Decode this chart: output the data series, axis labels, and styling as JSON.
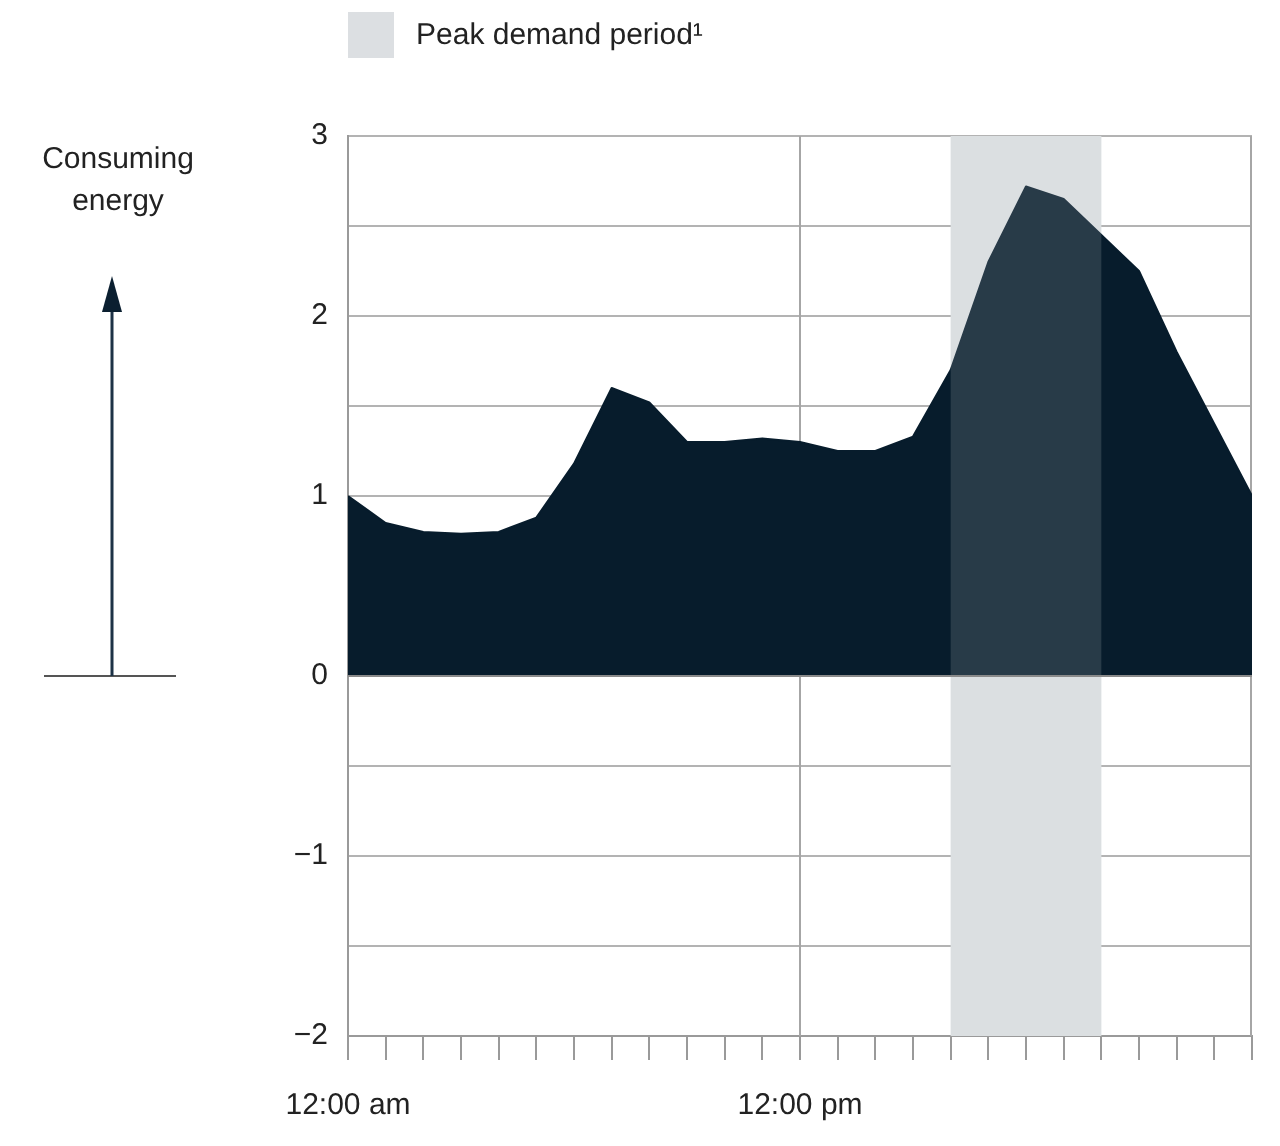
{
  "chart_data": {
    "type": "area",
    "x": [
      0,
      1,
      2,
      3,
      4,
      5,
      6,
      7,
      8,
      9,
      10,
      11,
      12,
      13,
      14,
      15,
      16,
      17,
      18,
      19,
      20,
      21,
      22,
      23,
      24
    ],
    "series": [
      {
        "color": "#071c2c",
        "values": [
          1.0,
          0.85,
          0.8,
          0.79,
          0.8,
          0.88,
          1.18,
          1.6,
          1.52,
          1.3,
          1.3,
          1.32,
          1.3,
          1.25,
          1.25,
          1.33,
          1.7,
          2.3,
          2.72,
          2.65,
          2.45,
          2.25,
          1.8,
          1.4,
          1.0
        ]
      }
    ],
    "xlim": [
      0,
      24
    ],
    "xticks": [
      {
        "value": 0,
        "label": "12:00 am"
      },
      {
        "value": 1,
        "label": null
      },
      {
        "value": 2,
        "label": null
      },
      {
        "value": 3,
        "label": null
      },
      {
        "value": 4,
        "label": null
      },
      {
        "value": 5,
        "label": null
      },
      {
        "value": 6,
        "label": null
      },
      {
        "value": 7,
        "label": null
      },
      {
        "value": 8,
        "label": null
      },
      {
        "value": 9,
        "label": null
      },
      {
        "value": 10,
        "label": null
      },
      {
        "value": 11,
        "label": null
      },
      {
        "value": 12,
        "label": "12:00 pm"
      },
      {
        "value": 13,
        "label": null
      },
      {
        "value": 14,
        "label": null
      },
      {
        "value": 15,
        "label": null
      },
      {
        "value": 16,
        "label": null
      },
      {
        "value": 17,
        "label": null
      },
      {
        "value": 18,
        "label": null
      },
      {
        "value": 19,
        "label": null
      },
      {
        "value": 20,
        "label": null
      },
      {
        "value": 21,
        "label": null
      },
      {
        "value": 22,
        "label": null
      },
      {
        "value": 23,
        "label": null
      },
      {
        "value": 24,
        "label": null
      }
    ],
    "ylim": [
      -2,
      3
    ],
    "yticks": [
      {
        "value": -2,
        "label": "−2"
      },
      {
        "value": -1.5,
        "label": null
      },
      {
        "value": -1,
        "label": "−1"
      },
      {
        "value": -0.5,
        "label": null
      },
      0,
      1,
      {
        "value": 1.5,
        "label": null
      },
      2,
      {
        "value": 2.5,
        "label": null
      },
      3
    ],
    "grid": "y",
    "ylabel": "Consuming energy",
    "ref_lines": [
      {
        "axis": "x",
        "value": 12,
        "label": null,
        "color": "#a6a6a6"
      }
    ],
    "bands": [
      {
        "axis": "x",
        "from": 16,
        "to": 20,
        "label": "Peak demand period¹",
        "color": "#dcdfe2"
      }
    ],
    "legend": "top"
  }
}
